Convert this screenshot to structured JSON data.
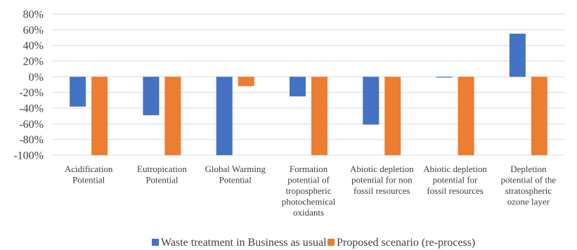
{
  "chart_data": {
    "type": "bar",
    "title": "",
    "xlabel": "",
    "ylabel": "",
    "ylim": [
      -100,
      80
    ],
    "yticks": [
      "80%",
      "60%",
      "40%",
      "20%",
      "0%",
      "-20%",
      "-40%",
      "-60%",
      "-80%",
      "-100%"
    ],
    "grid": true,
    "legend_position": "bottom",
    "categories": [
      [
        "Acidification",
        "Potential"
      ],
      [
        "Eutropication",
        "Potential"
      ],
      [
        "Global Warming",
        "Potential"
      ],
      [
        "Formation",
        "potential of",
        "tropospheric",
        "photochemical",
        "oxidants"
      ],
      [
        "Abiotic depletion",
        "potential for non",
        "fossil resources"
      ],
      [
        "Abiotic depletion",
        "potential for",
        "fossil resources"
      ],
      [
        "Depletion",
        "potential of the",
        "stratospheric",
        "ozone layer"
      ]
    ],
    "series": [
      {
        "name": "Waste treatment in Business as usual",
        "color": "#4472c4",
        "values": [
          -38,
          -49,
          -100,
          -25,
          -61,
          -1,
          55
        ]
      },
      {
        "name": "Proposed scenario (re-process)",
        "color": "#ed7d31",
        "values": [
          -100,
          -100,
          -12,
          -100,
          -100,
          -100,
          -100
        ]
      }
    ]
  }
}
